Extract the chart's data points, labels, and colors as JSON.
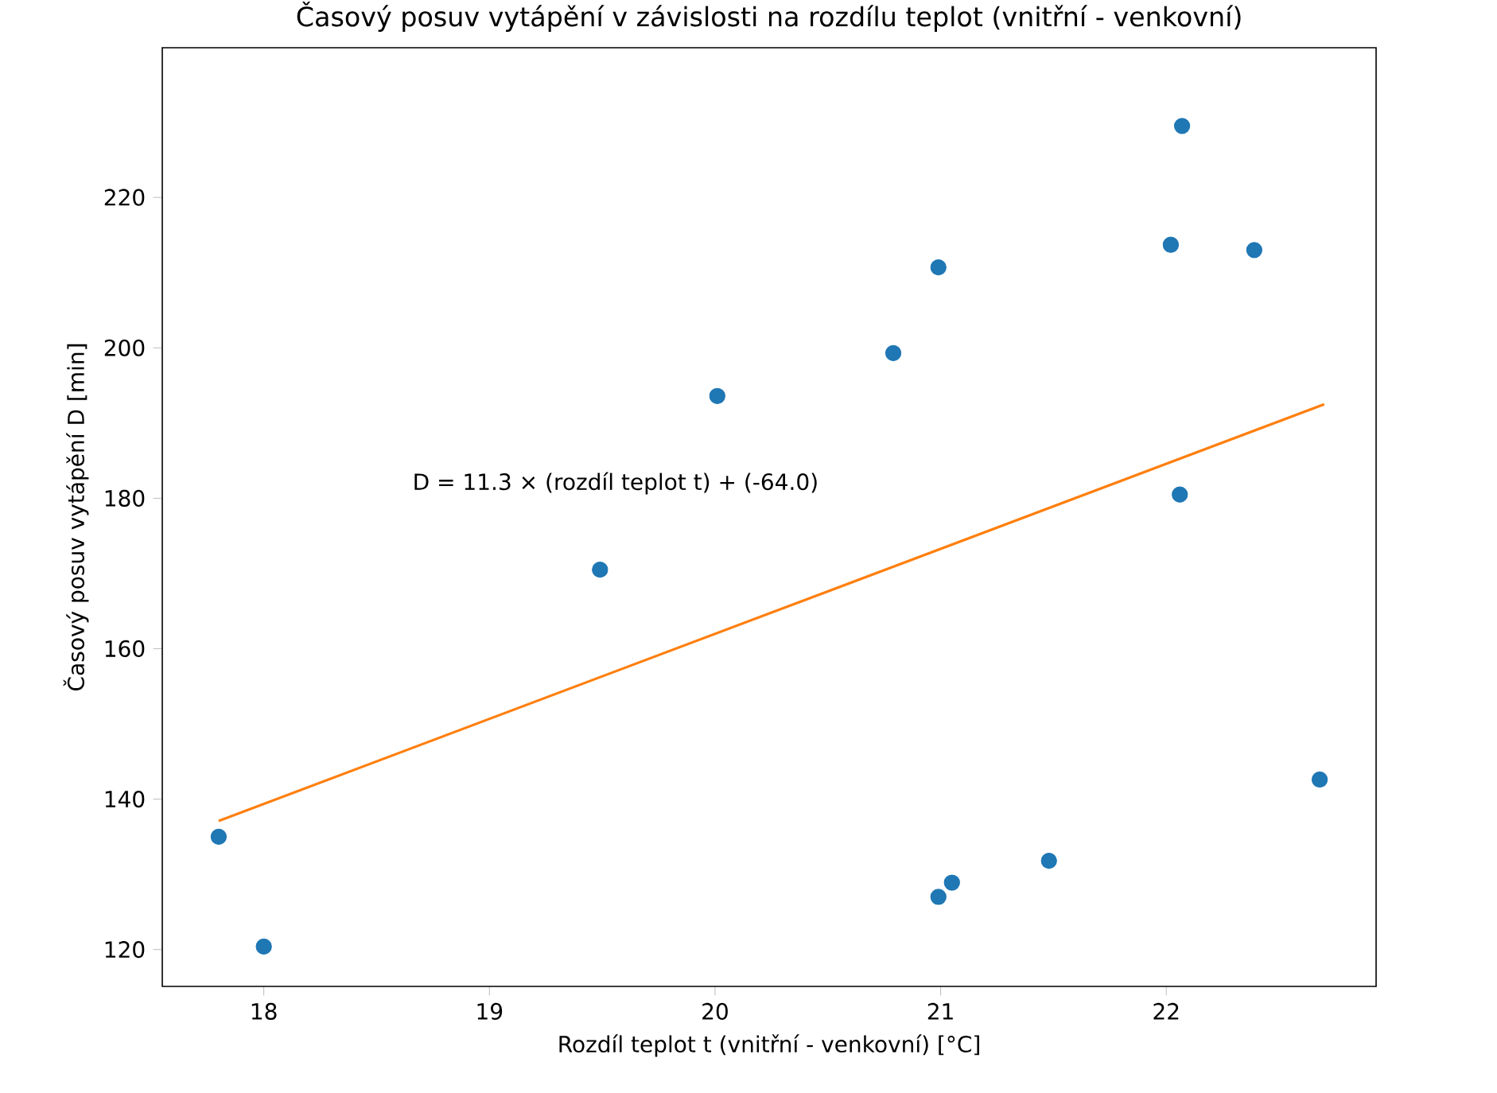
{
  "chart_data": {
    "type": "scatter",
    "title": "Časový posuv vytápění v závislosti na rozdílu teplot (vnitřní - venkovní)",
    "xlabel": "Rozdíl teplot t (vnitřní - venkovní) [°C]",
    "ylabel": "Časový posuv vytápění D [min]",
    "annotations": [
      "D = 11.3 × (rozdíl teplot t) + (-64.0)"
    ],
    "xlim": [
      17.55,
      22.93
    ],
    "ylim": [
      115.1,
      239.9
    ],
    "xticks": [
      18,
      19,
      20,
      21,
      22
    ],
    "yticks": [
      120,
      140,
      160,
      180,
      200,
      220
    ],
    "grid": false,
    "series": [
      {
        "marker": "circle",
        "color": "#1f77b4",
        "x": [
          17.8,
          18.0,
          19.49,
          20.01,
          20.79,
          20.99,
          20.99,
          21.05,
          21.48,
          22.02,
          22.07,
          22.06,
          22.39,
          22.68
        ],
        "values": [
          135.0,
          120.4,
          170.5,
          193.6,
          199.3,
          210.7,
          127.0,
          128.9,
          131.8,
          213.7,
          229.5,
          180.5,
          213.0,
          142.6
        ]
      },
      {
        "type": "line",
        "marker": "none",
        "line_style": "solid",
        "color": "#ff7f0e",
        "x": [
          17.8,
          22.7
        ],
        "values": [
          137.1,
          192.5
        ]
      }
    ]
  }
}
